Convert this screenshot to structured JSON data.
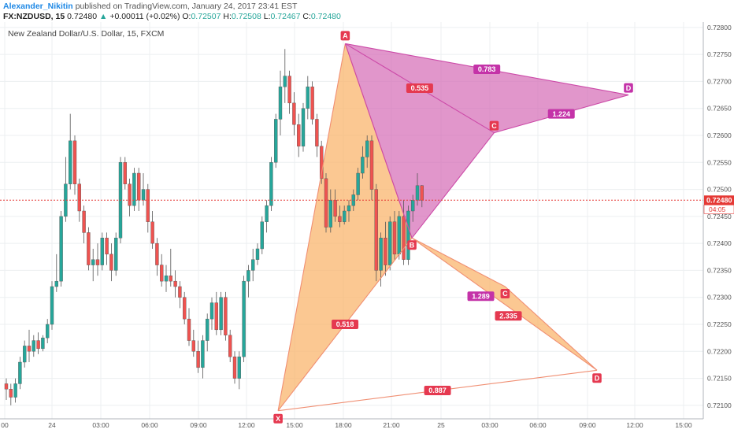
{
  "header": {
    "author": "Alexander_Nikitin",
    "published": "published on TradingView.com, January 24, 2017 23:41 EST",
    "symbol": "FX:NZDUSD, 15",
    "last": "0.72480",
    "change": "+0.00011 (+0.02%)",
    "open_label": "O:",
    "open": "0.72507",
    "high_label": "H:",
    "high": "0.72508",
    "low_label": "L:",
    "low": "0.72467",
    "close_label": "C:",
    "close": "0.72480"
  },
  "chart_title": "New Zealand Dollar/U.S. Dollar, 15, FXCM",
  "colors": {
    "up": "#26a69a",
    "down": "#ef5350",
    "grid": "#eceff1",
    "orange_fill": "#f9b66d",
    "orange_line": "#f08f73",
    "pink_fill": "#d46ab5",
    "pink_line": "#cc4aa8",
    "red_label": "#e53950",
    "magenta_label": "#c433a8",
    "price_line": "#e53935"
  },
  "price_badge": {
    "price": "0.72480",
    "countdown": "04:05"
  },
  "chart_data": {
    "type": "candlestick",
    "ylim": [
      0.72075,
      0.7281
    ],
    "y_ticks": [
      "0.72800",
      "0.72750",
      "0.72700",
      "0.72650",
      "0.72600",
      "0.72550",
      "0.72500",
      "0.72450",
      "0.72400",
      "0.72350",
      "0.72300",
      "0.72250",
      "0.72200",
      "0.72150",
      "0.72100"
    ],
    "x_ticks": [
      "00",
      "24",
      "03:00",
      "06:00",
      "09:00",
      "12:00",
      "15:00",
      "18:00",
      "21:00",
      "25",
      "03:00",
      "06:00",
      "09:00",
      "12:00",
      "15:00"
    ],
    "last_price": 0.7248,
    "candles": [
      [
        0.7214,
        0.7215,
        0.7211,
        0.7213
      ],
      [
        0.7213,
        0.7214,
        0.721,
        0.72115
      ],
      [
        0.72115,
        0.7215,
        0.72105,
        0.7214
      ],
      [
        0.7214,
        0.7219,
        0.7213,
        0.7218
      ],
      [
        0.7218,
        0.7222,
        0.7217,
        0.7221
      ],
      [
        0.7221,
        0.7224,
        0.7218,
        0.722
      ],
      [
        0.722,
        0.7223,
        0.7219,
        0.7222
      ],
      [
        0.7222,
        0.72235,
        0.72195,
        0.72205
      ],
      [
        0.72205,
        0.7223,
        0.722,
        0.72225
      ],
      [
        0.72225,
        0.7226,
        0.72215,
        0.7225
      ],
      [
        0.7225,
        0.7233,
        0.7224,
        0.7232
      ],
      [
        0.7232,
        0.7238,
        0.7231,
        0.7233
      ],
      [
        0.7233,
        0.7246,
        0.7232,
        0.7245
      ],
      [
        0.7245,
        0.7256,
        0.7244,
        0.7251
      ],
      [
        0.7251,
        0.7264,
        0.725,
        0.7259
      ],
      [
        0.7259,
        0.726,
        0.7249,
        0.7251
      ],
      [
        0.7251,
        0.7252,
        0.7244,
        0.7246
      ],
      [
        0.7246,
        0.7247,
        0.724,
        0.7242
      ],
      [
        0.7242,
        0.7243,
        0.7235,
        0.7236
      ],
      [
        0.7236,
        0.7239,
        0.7233,
        0.7237
      ],
      [
        0.7237,
        0.724,
        0.7234,
        0.7236
      ],
      [
        0.7236,
        0.7242,
        0.7235,
        0.7241
      ],
      [
        0.7241,
        0.7242,
        0.7236,
        0.7238
      ],
      [
        0.7238,
        0.724,
        0.7233,
        0.7235
      ],
      [
        0.7235,
        0.7242,
        0.7234,
        0.7241
      ],
      [
        0.7241,
        0.7256,
        0.724,
        0.7255
      ],
      [
        0.7255,
        0.7256,
        0.725,
        0.7251
      ],
      [
        0.7251,
        0.7252,
        0.7245,
        0.7247
      ],
      [
        0.7247,
        0.7254,
        0.7246,
        0.7253
      ],
      [
        0.7253,
        0.7254,
        0.7246,
        0.7248
      ],
      [
        0.7248,
        0.7253,
        0.7247,
        0.725
      ],
      [
        0.725,
        0.7251,
        0.7242,
        0.7244
      ],
      [
        0.7244,
        0.7246,
        0.7239,
        0.724
      ],
      [
        0.724,
        0.7241,
        0.7234,
        0.7236
      ],
      [
        0.7236,
        0.7238,
        0.7232,
        0.7233
      ],
      [
        0.7233,
        0.7236,
        0.7231,
        0.7234
      ],
      [
        0.7234,
        0.7239,
        0.7232,
        0.7233
      ],
      [
        0.7233,
        0.7235,
        0.723,
        0.7232
      ],
      [
        0.7232,
        0.7233,
        0.7228,
        0.723
      ],
      [
        0.723,
        0.7231,
        0.7225,
        0.7226
      ],
      [
        0.7226,
        0.7228,
        0.7221,
        0.7222
      ],
      [
        0.7222,
        0.7224,
        0.7219,
        0.722
      ],
      [
        0.722,
        0.7222,
        0.7216,
        0.7217
      ],
      [
        0.7217,
        0.7223,
        0.7215,
        0.7222
      ],
      [
        0.7222,
        0.7227,
        0.722,
        0.7226
      ],
      [
        0.7226,
        0.723,
        0.7224,
        0.7229
      ],
      [
        0.7229,
        0.7231,
        0.7223,
        0.7224
      ],
      [
        0.7224,
        0.7231,
        0.7223,
        0.723
      ],
      [
        0.723,
        0.7231,
        0.7222,
        0.7223
      ],
      [
        0.7223,
        0.7224,
        0.7218,
        0.7219
      ],
      [
        0.7219,
        0.722,
        0.7214,
        0.7215
      ],
      [
        0.7215,
        0.722,
        0.7213,
        0.7219
      ],
      [
        0.7219,
        0.7234,
        0.7218,
        0.7233
      ],
      [
        0.7233,
        0.7236,
        0.723,
        0.7235
      ],
      [
        0.7235,
        0.7239,
        0.7233,
        0.7237
      ],
      [
        0.7237,
        0.724,
        0.7236,
        0.7239
      ],
      [
        0.7239,
        0.7245,
        0.7238,
        0.7244
      ],
      [
        0.7244,
        0.7248,
        0.7242,
        0.7247
      ],
      [
        0.7247,
        0.7256,
        0.7246,
        0.7255
      ],
      [
        0.7255,
        0.7264,
        0.7254,
        0.7263
      ],
      [
        0.7263,
        0.7272,
        0.726,
        0.7269
      ],
      [
        0.7269,
        0.7276,
        0.7266,
        0.7271
      ],
      [
        0.7271,
        0.7272,
        0.7264,
        0.7266
      ],
      [
        0.7266,
        0.7268,
        0.726,
        0.7262
      ],
      [
        0.7262,
        0.7264,
        0.7256,
        0.7258
      ],
      [
        0.7258,
        0.7266,
        0.7257,
        0.7265
      ],
      [
        0.7265,
        0.7271,
        0.7263,
        0.7269
      ],
      [
        0.7269,
        0.727,
        0.7262,
        0.7263
      ],
      [
        0.7263,
        0.7264,
        0.7256,
        0.7258
      ],
      [
        0.7258,
        0.7259,
        0.7251,
        0.7252
      ],
      [
        0.7252,
        0.7253,
        0.7242,
        0.7243
      ],
      [
        0.7243,
        0.725,
        0.7242,
        0.7248
      ],
      [
        0.7248,
        0.725,
        0.7244,
        0.7245
      ],
      [
        0.7245,
        0.7247,
        0.7243,
        0.7244
      ],
      [
        0.7244,
        0.7247,
        0.72435,
        0.7246
      ],
      [
        0.7246,
        0.7248,
        0.7244,
        0.7247
      ],
      [
        0.7247,
        0.725,
        0.7246,
        0.7249
      ],
      [
        0.7249,
        0.7254,
        0.7248,
        0.7253
      ],
      [
        0.7253,
        0.7258,
        0.7252,
        0.7256
      ],
      [
        0.7256,
        0.726,
        0.7254,
        0.7259
      ],
      [
        0.7259,
        0.726,
        0.7248,
        0.725
      ],
      [
        0.725,
        0.7251,
        0.7233,
        0.7235
      ],
      [
        0.7235,
        0.7242,
        0.7232,
        0.7241
      ],
      [
        0.7241,
        0.7244,
        0.7234,
        0.7236
      ],
      [
        0.7236,
        0.7245,
        0.7235,
        0.7244
      ],
      [
        0.7244,
        0.7246,
        0.7237,
        0.7238
      ],
      [
        0.7238,
        0.7246,
        0.7237,
        0.7245
      ],
      [
        0.7245,
        0.7248,
        0.7236,
        0.7237
      ],
      [
        0.7237,
        0.7247,
        0.7236,
        0.7246
      ],
      [
        0.7246,
        0.7249,
        0.7244,
        0.7248
      ],
      [
        0.7248,
        0.7253,
        0.7247,
        0.72507
      ],
      [
        0.72507,
        0.72508,
        0.72467,
        0.7248
      ]
    ],
    "harmonic_pattern_1": {
      "points": {
        "X": 0.7209,
        "A": 0.7277,
        "B": 0.7241,
        "C": 0.7232,
        "D": 0.72165
      },
      "ratios": [
        "0.518",
        "1.289",
        "2.335",
        "0.887"
      ]
    },
    "harmonic_pattern_2": {
      "points": {
        "A": 0.7277,
        "B": 0.7241,
        "C": 0.72605,
        "D": 0.72675
      },
      "ratios": [
        "0.535",
        "1.224",
        "0.783"
      ]
    }
  }
}
